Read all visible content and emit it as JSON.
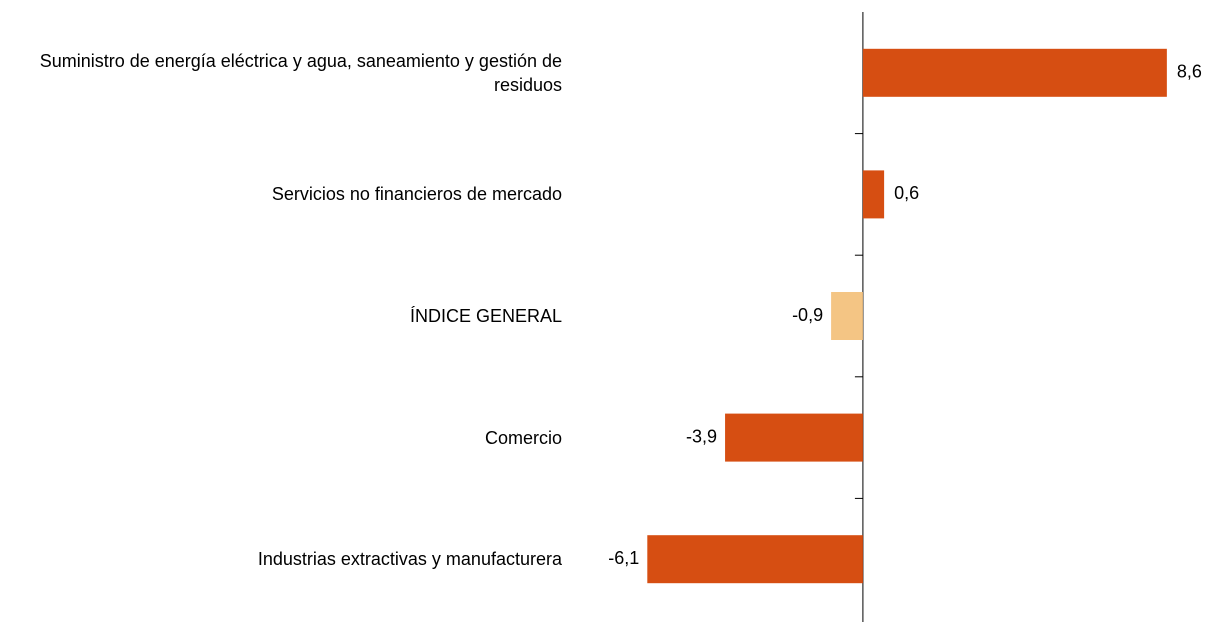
{
  "chart_data": {
    "type": "bar",
    "orientation": "horizontal",
    "categories": [
      "Suministro de energía eléctrica y agua, saneamiento y gestión de residuos",
      "Servicios no financieros de mercado",
      "ÍNDICE GENERAL",
      "Comercio",
      "Industrias extractivas y manufacturera"
    ],
    "values": [
      8.6,
      0.6,
      -0.9,
      -3.9,
      -6.1
    ],
    "value_labels": [
      "8,6",
      "0,6",
      "-0,9",
      "-3,9",
      "-6,1"
    ],
    "colors": [
      "#d64e12",
      "#d64e12",
      "#f4c584",
      "#d64e12",
      "#d64e12"
    ],
    "xlim": [
      -7,
      9
    ]
  }
}
